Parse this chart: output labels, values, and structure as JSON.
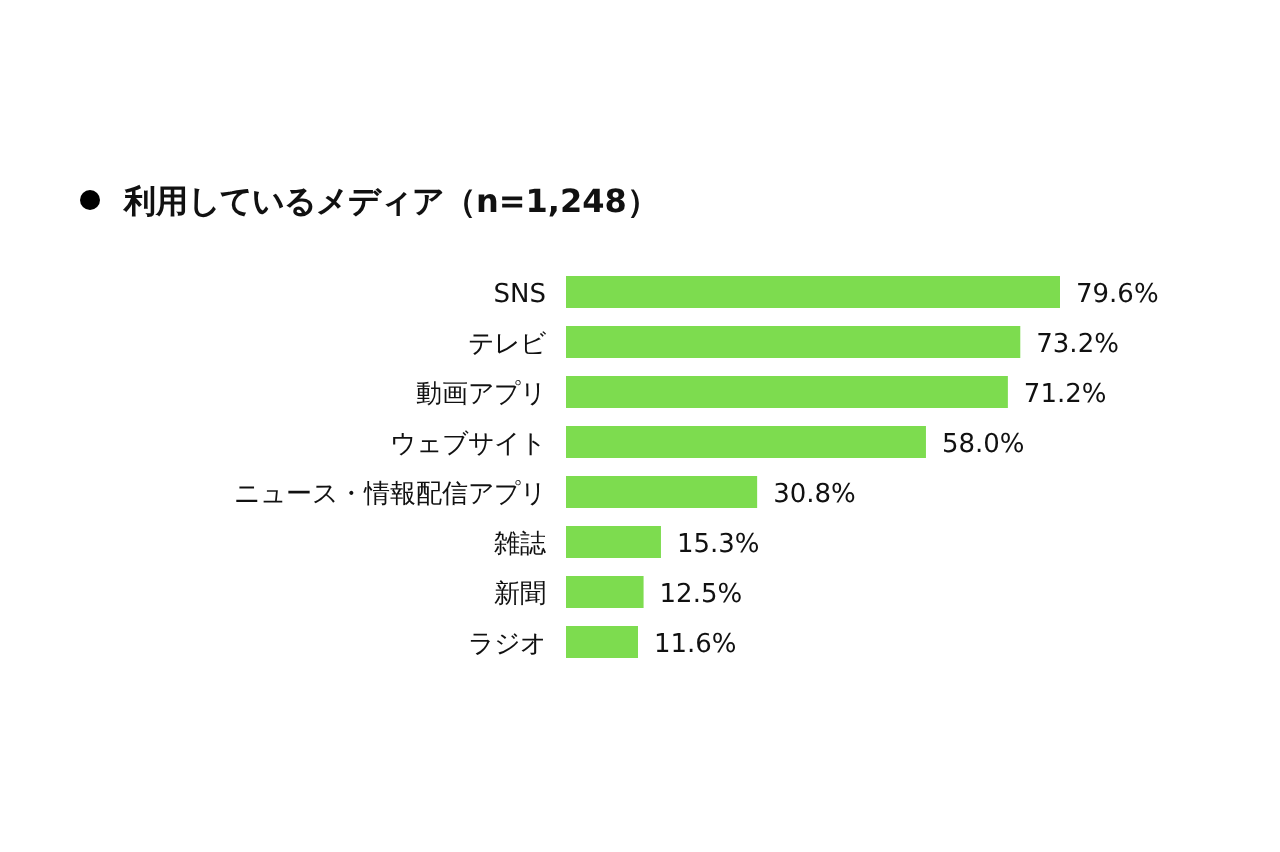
{
  "chart_data": {
    "type": "bar",
    "orientation": "horizontal",
    "title": "利用しているメディア（n=1,248）",
    "categories": [
      "SNS",
      "テレビ",
      "動画アプリ",
      "ウェブサイト",
      "ニュース・情報配信アプリ",
      "雑誌",
      "新聞",
      "ラジオ"
    ],
    "values": [
      79.6,
      73.2,
      71.2,
      58.0,
      30.8,
      15.3,
      12.5,
      11.6
    ],
    "value_labels": [
      "79.6%",
      "73.2%",
      "71.2%",
      "58.0%",
      "30.8%",
      "15.3%",
      "12.5%",
      "11.6%"
    ],
    "color": "#7ddc4f"
  }
}
